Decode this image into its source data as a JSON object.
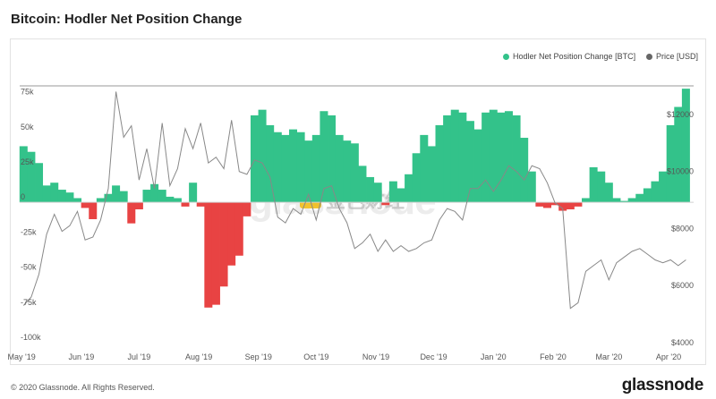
{
  "title": "Bitcoin: Hodler Net Position Change",
  "legend": {
    "series1": "Hodler Net Position Change [BTC]",
    "series2": "Price [USD]"
  },
  "colors": {
    "positive": "#33c28a",
    "negative": "#e84343",
    "price_line": "#888888",
    "legend_price": "#666666"
  },
  "footer": "© 2020 Glassnode. All Rights Reserved.",
  "logo": "glassnode",
  "watermark": {
    "text": "glassnode",
    "cjk": "金色财经"
  },
  "chart_data": {
    "type": "bar",
    "title": "Bitcoin: Hodler Net Position Change",
    "x_tick_labels": [
      "May '19",
      "Jun '19",
      "Jul '19",
      "Aug '19",
      "Sep '19",
      "Oct '19",
      "Nov '19",
      "Dec '19",
      "Jan '20",
      "Feb '20",
      "Mar '20",
      "Apr '20"
    ],
    "y_left_tick_labels": [
      "75k",
      "50k",
      "25k",
      "0",
      "-25k",
      "-50k",
      "-75k",
      "-100k"
    ],
    "y_left_ticks": [
      75000,
      50000,
      25000,
      0,
      -25000,
      -50000,
      -75000,
      -100000
    ],
    "y_right_tick_labels": [
      "$12000",
      "$10000",
      "$8000",
      "$6000",
      "$4000"
    ],
    "y_right_ticks": [
      12000,
      10000,
      8000,
      6000,
      4000
    ],
    "ylim_left": [
      -100000,
      83000
    ],
    "ylim_right": [
      4000,
      13000
    ],
    "x_range_days": [
      0,
      350
    ],
    "x_start": "2019-04-30",
    "series": [
      {
        "name": "Hodler Net Position Change [BTC]",
        "axis": "left",
        "x": [
          0,
          4,
          8,
          12,
          16,
          20,
          24,
          28,
          32,
          36,
          40,
          44,
          48,
          52,
          56,
          60,
          64,
          68,
          72,
          76,
          80,
          84,
          88,
          92,
          96,
          100,
          104,
          108,
          112,
          116,
          120,
          124,
          128,
          132,
          136,
          140,
          144,
          148,
          152,
          156,
          160,
          164,
          168,
          172,
          176,
          180,
          184,
          188,
          192,
          196,
          200,
          204,
          208,
          212,
          216,
          220,
          224,
          228,
          232,
          236,
          240,
          244,
          248,
          252,
          256,
          260,
          264,
          268,
          272,
          276,
          280,
          284,
          288,
          292,
          296,
          300,
          304,
          308,
          312,
          316,
          320,
          324,
          328,
          332,
          336,
          340,
          344
        ],
        "values": [
          40000,
          36000,
          28000,
          12000,
          14000,
          9000,
          7000,
          3000,
          -4000,
          -12000,
          3000,
          6000,
          12000,
          8000,
          -15000,
          -5000,
          9000,
          13000,
          9000,
          4000,
          3000,
          -3000,
          14000,
          -3000,
          -75000,
          -73000,
          -60000,
          -45000,
          -38000,
          -10000,
          62000,
          66000,
          55000,
          50000,
          48000,
          52000,
          50000,
          44000,
          48000,
          65000,
          62000,
          48000,
          44000,
          42000,
          26000,
          18000,
          14000,
          -2000,
          15000,
          10000,
          20000,
          35000,
          48000,
          40000,
          55000,
          62000,
          66000,
          64000,
          58000,
          52000,
          64000,
          66000,
          64000,
          65000,
          62000,
          46000,
          22000,
          -3000,
          -4000,
          -2000,
          -6000,
          -5000,
          -3000,
          3000,
          25000,
          22000,
          14000,
          3000,
          1000,
          3000,
          6000,
          10000,
          15000,
          22000,
          55000,
          68000,
          81000
        ]
      },
      {
        "name": "Price [USD]",
        "axis": "right",
        "x": [
          0,
          4,
          8,
          12,
          16,
          20,
          24,
          28,
          32,
          36,
          40,
          44,
          48,
          52,
          56,
          60,
          64,
          68,
          72,
          76,
          80,
          84,
          88,
          92,
          96,
          100,
          104,
          108,
          112,
          116,
          120,
          124,
          128,
          132,
          136,
          140,
          144,
          148,
          152,
          156,
          160,
          164,
          168,
          172,
          176,
          180,
          184,
          188,
          192,
          196,
          200,
          204,
          208,
          212,
          216,
          220,
          224,
          228,
          232,
          236,
          240,
          244,
          248,
          252,
          256,
          260,
          264,
          268,
          272,
          276,
          280,
          284,
          288,
          292,
          296,
          300,
          304,
          308,
          312,
          316,
          320,
          324,
          328,
          332,
          336,
          340,
          344
        ],
        "values": [
          5300,
          5600,
          6400,
          7800,
          8500,
          7900,
          8100,
          8600,
          7600,
          7700,
          8300,
          9400,
          12800,
          11200,
          11600,
          9700,
          10800,
          9400,
          11700,
          9500,
          10100,
          11500,
          10800,
          11700,
          10300,
          10500,
          10100,
          11800,
          10000,
          9900,
          10400,
          10300,
          9800,
          8400,
          8200,
          8700,
          8500,
          9200,
          8300,
          9400,
          9500,
          8700,
          8200,
          7300,
          7500,
          7800,
          7200,
          7600,
          7200,
          7400,
          7200,
          7300,
          7500,
          7600,
          8300,
          8700,
          8600,
          8300,
          9400,
          9400,
          9700,
          9300,
          9700,
          10200,
          10000,
          9700,
          10200,
          10100,
          9600,
          8900,
          8700,
          5200,
          5400,
          6500,
          6700,
          6900,
          6200,
          6800,
          7000,
          7200,
          7300,
          7100,
          6900,
          6800,
          6900,
          6700,
          6900
        ]
      }
    ],
    "grid": true,
    "legend_position": "top-right"
  }
}
